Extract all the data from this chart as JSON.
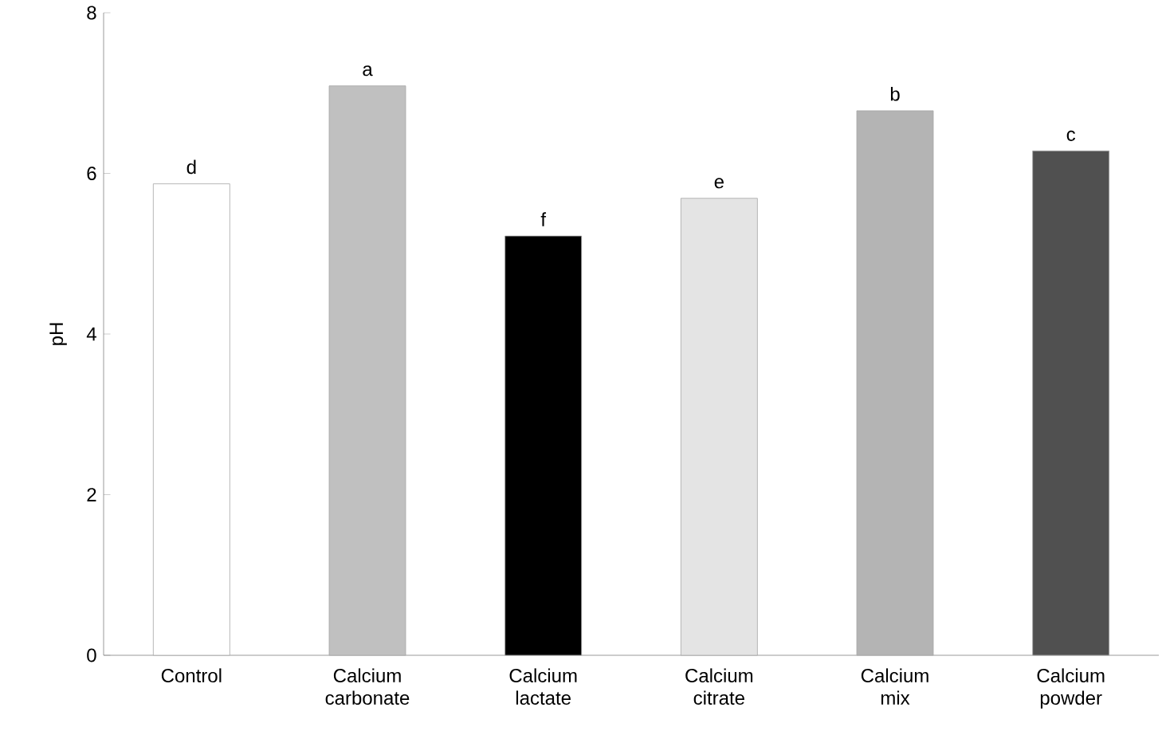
{
  "chart_data": {
    "type": "bar",
    "ylabel": "pH",
    "categories": [
      "Control",
      "Calcium carbonate",
      "Calcium lactate",
      "Calcium citrate",
      "Calcium mix",
      "Calcium powder"
    ],
    "values": [
      5.87,
      7.09,
      5.22,
      5.69,
      6.78,
      6.28
    ],
    "colors": [
      "#ffffff",
      "#c0c0c0",
      "#000000",
      "#e4e4e4",
      "#b4b4b4",
      "#505050"
    ],
    "ylim": [
      0,
      8
    ],
    "yticks": [
      0,
      2,
      4,
      6,
      8
    ],
    "grid": false,
    "annotations": [
      {
        "text": "d",
        "x": "Control",
        "y": 5.87
      },
      {
        "text": "a",
        "x": "Calcium carbonate",
        "y": 7.09
      },
      {
        "text": "f",
        "x": "Calcium lactate",
        "y": 5.22
      },
      {
        "text": "e",
        "x": "Calcium citrate",
        "y": 5.69
      },
      {
        "text": "b",
        "x": "Calcium mix",
        "y": 6.78
      },
      {
        "text": "c",
        "x": "Calcium powder",
        "y": 6.28
      }
    ]
  }
}
